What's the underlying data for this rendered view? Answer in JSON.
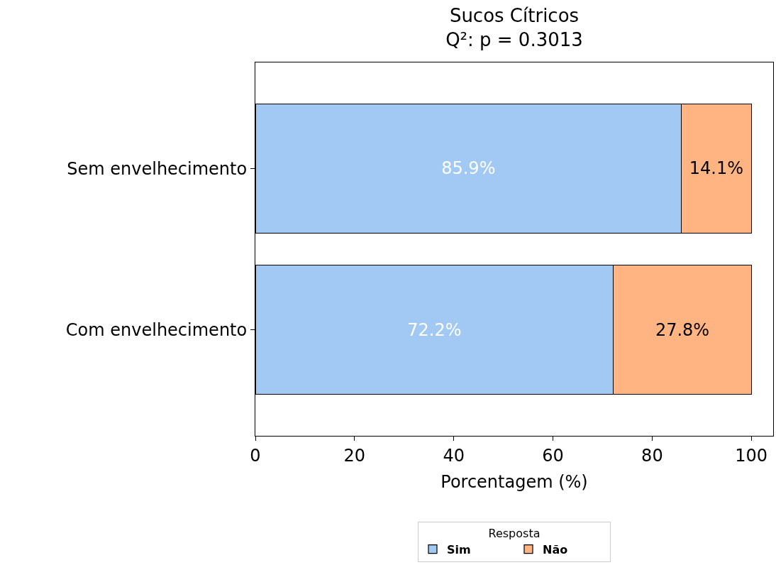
{
  "chart_data": {
    "type": "bar",
    "orientation": "horizontal",
    "stacked": true,
    "title": "Sucos Cítricos",
    "subtitle": "Q²: p = 0.3013",
    "xlabel": "Porcentagem (%)",
    "legend_title": "Resposta",
    "categories": [
      "Sem envelhecimento",
      "Com envelhecimento"
    ],
    "series": [
      {
        "name": "Sim",
        "color": "#a1c9f4",
        "values": [
          85.9,
          72.2
        ],
        "value_labels": [
          "85.9%",
          "72.2%"
        ]
      },
      {
        "name": "Não",
        "color": "#ffb482",
        "values": [
          14.1,
          27.8
        ],
        "value_labels": [
          "14.1%",
          "27.8%"
        ]
      }
    ],
    "xlim": [
      0,
      104.4
    ],
    "xticks": [
      0,
      20,
      40,
      60,
      80,
      100
    ],
    "legend": "bottom"
  }
}
